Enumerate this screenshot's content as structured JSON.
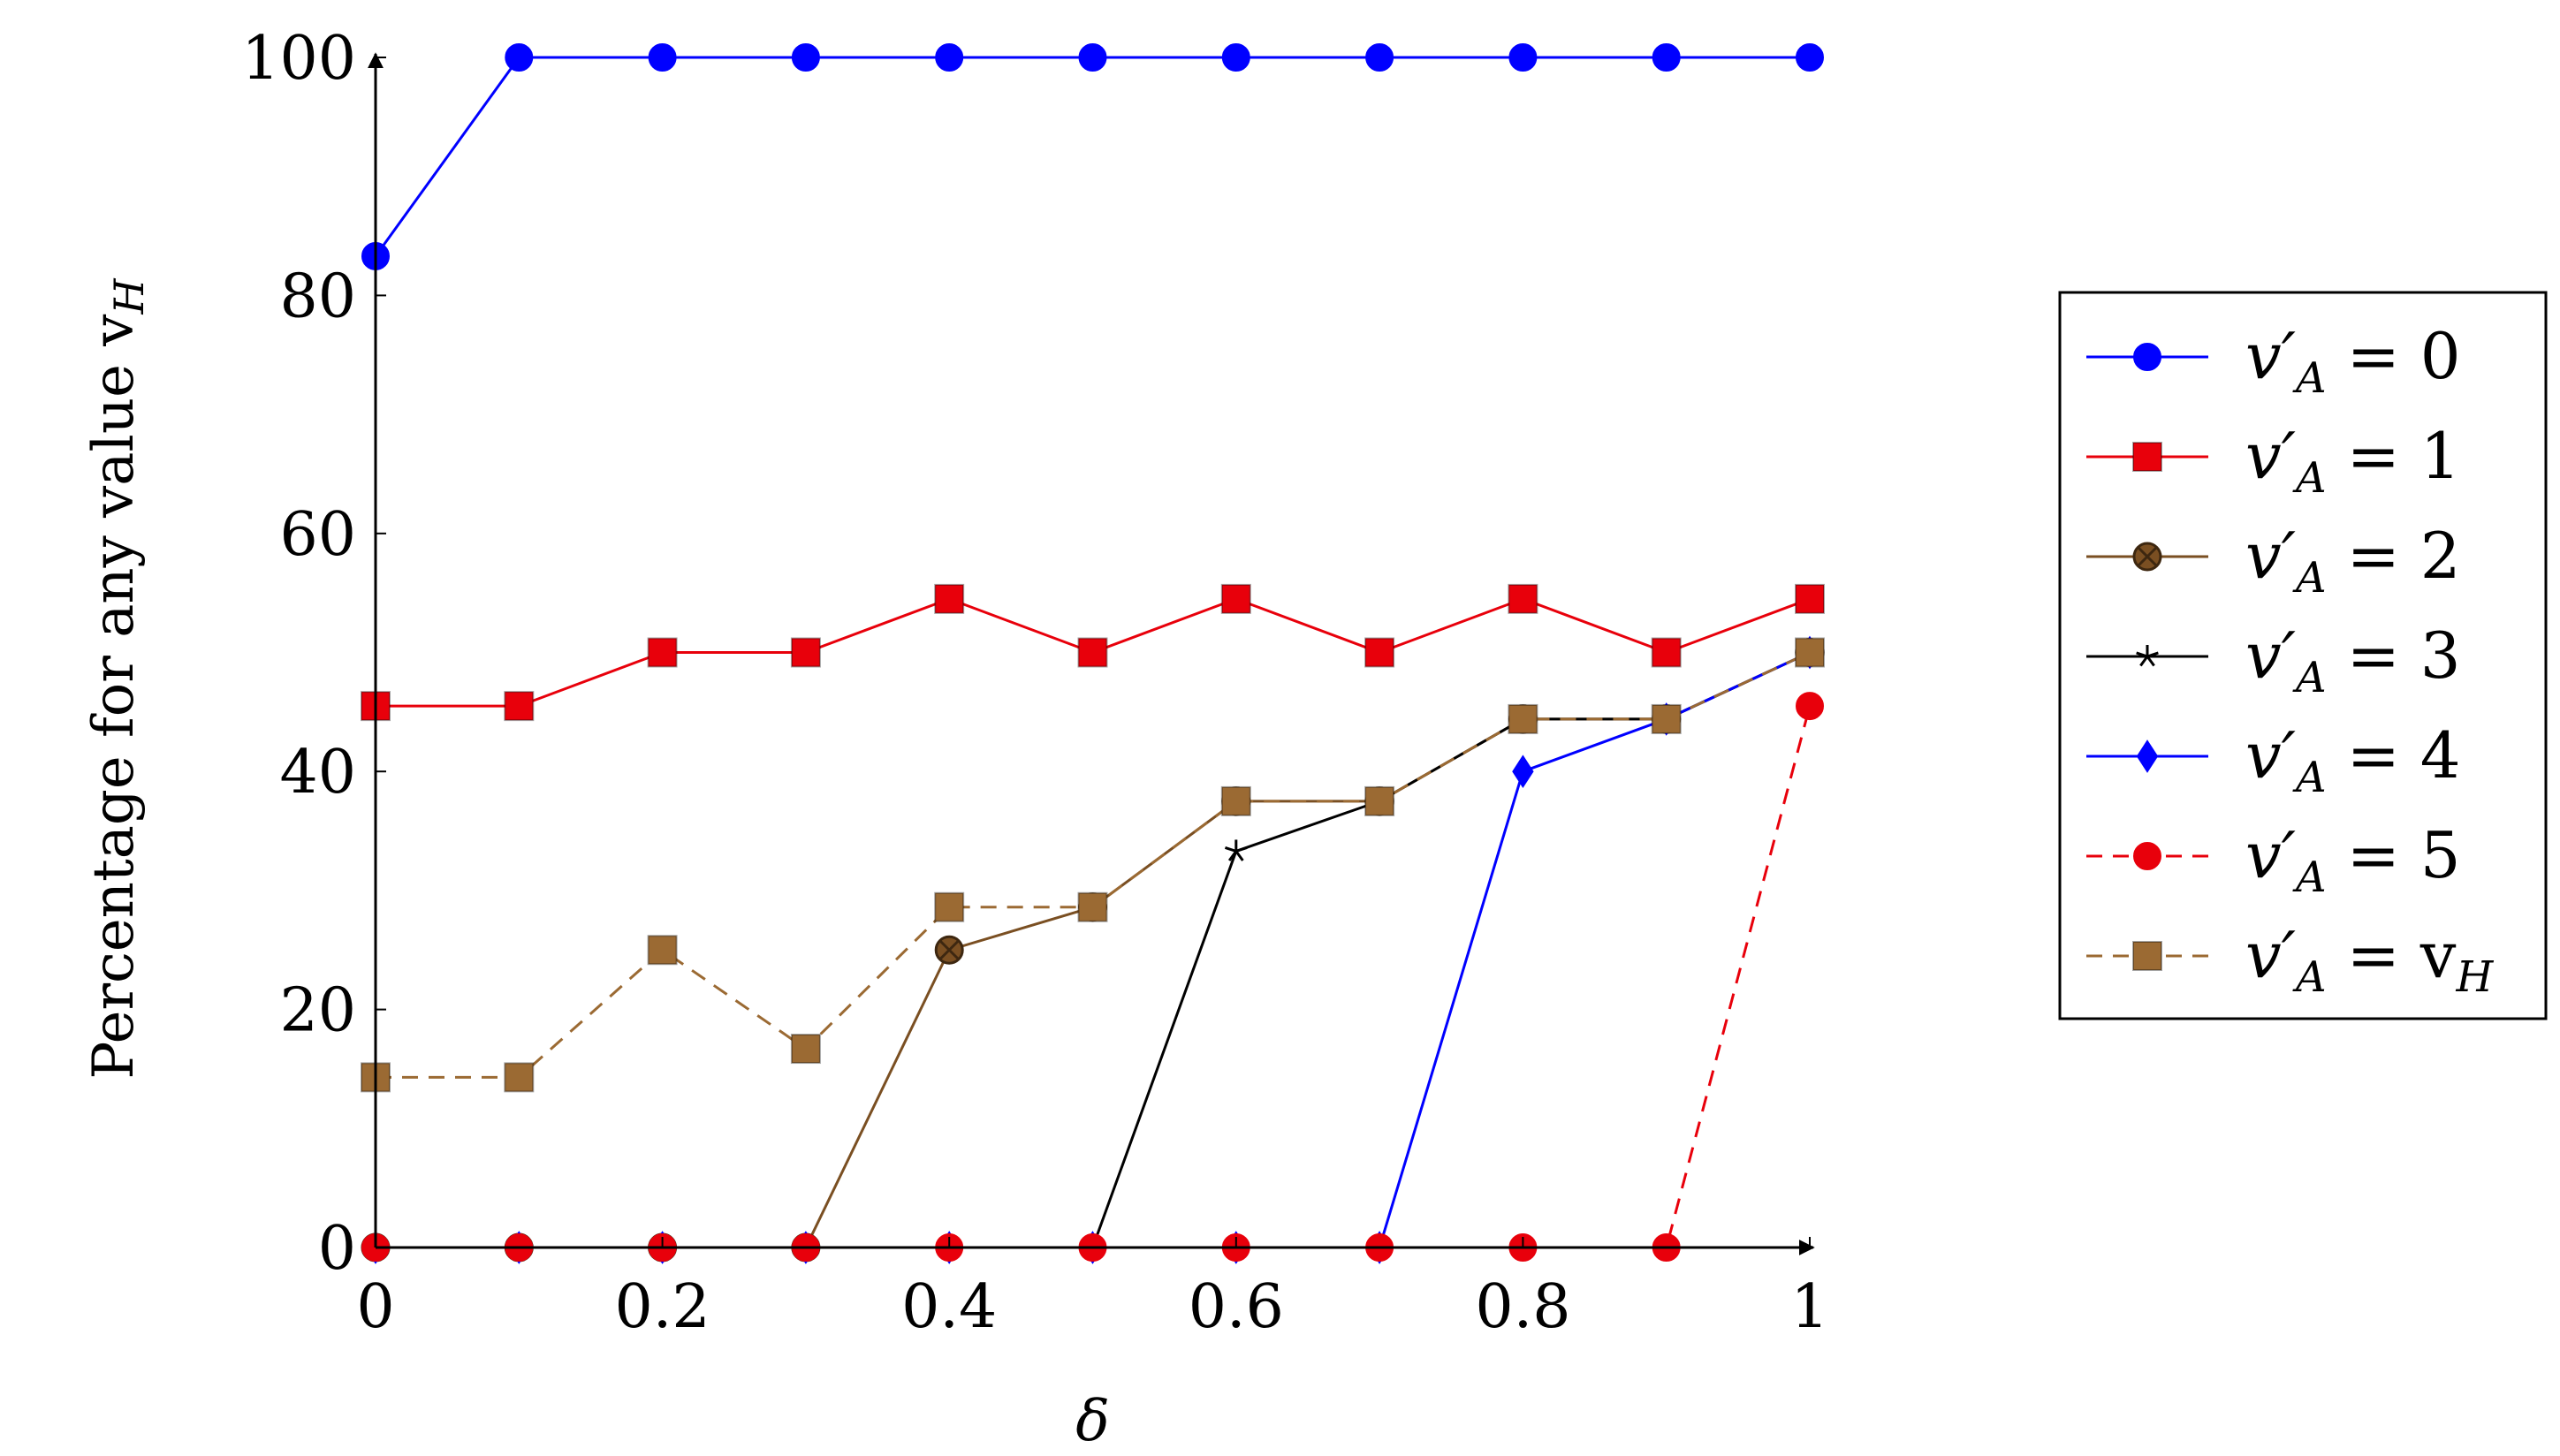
{
  "chart_data": {
    "type": "line",
    "xlabel": "δ",
    "ylabel": "Percentage for any value v",
    "ylabel_sub": "H",
    "xlim": [
      0,
      1
    ],
    "ylim": [
      0,
      100
    ],
    "x_ticks": [
      0,
      0.2,
      0.4,
      0.6,
      0.8,
      1
    ],
    "x_tick_labels": [
      "0",
      "0.2",
      "0.4",
      "0.6",
      "0.8",
      "1"
    ],
    "y_ticks": [
      0,
      20,
      40,
      60,
      80,
      100
    ],
    "y_tick_labels": [
      "0",
      "20",
      "40",
      "60",
      "80",
      "100"
    ],
    "x": [
      0,
      0.1,
      0.2,
      0.3,
      0.4,
      0.5,
      0.6,
      0.7,
      0.8,
      0.9,
      1.0
    ],
    "legend_position": "right",
    "series": [
      {
        "name": "v′A = 0",
        "label_var": "v′",
        "label_sub": "A",
        "label_rhs": "= 0",
        "color": "#0000ff",
        "marker": "circle",
        "dash": "solid",
        "values": [
          83.3,
          100,
          100,
          100,
          100,
          100,
          100,
          100,
          100,
          100,
          100
        ]
      },
      {
        "name": "v′A = 1",
        "label_var": "v′",
        "label_sub": "A",
        "label_rhs": "= 1",
        "color": "#e8000b",
        "marker": "square",
        "dash": "solid",
        "values": [
          45.5,
          45.5,
          50,
          50,
          54.5,
          50,
          54.5,
          50,
          54.5,
          50,
          54.5
        ]
      },
      {
        "name": "v′A = 2",
        "label_var": "v′",
        "label_sub": "A",
        "label_rhs": "= 2",
        "color": "#7a4f22",
        "marker": "otimes",
        "dash": "solid",
        "values": [
          0,
          0,
          0,
          0,
          25,
          28.6,
          37.5,
          37.5,
          44.4,
          44.4,
          50
        ]
      },
      {
        "name": "v′A = 3",
        "label_var": "v′",
        "label_sub": "A",
        "label_rhs": "= 3",
        "color": "#000000",
        "marker": "star",
        "dash": "solid",
        "values": [
          0,
          0,
          0,
          0,
          0,
          0,
          33.3,
          37.5,
          44.4,
          44.4,
          50
        ]
      },
      {
        "name": "v′A = 4",
        "label_var": "v′",
        "label_sub": "A",
        "label_rhs": "= 4",
        "color": "#0000ff",
        "marker": "diamond",
        "dash": "solid",
        "values": [
          0,
          0,
          0,
          0,
          0,
          0,
          0,
          0,
          40,
          44.4,
          50
        ]
      },
      {
        "name": "v′A = 5",
        "label_var": "v′",
        "label_sub": "A",
        "label_rhs": "= 5",
        "color": "#e8000b",
        "marker": "circle",
        "dash": "dashed",
        "values": [
          0,
          0,
          0,
          0,
          0,
          0,
          0,
          0,
          0,
          0,
          45.5
        ]
      },
      {
        "name": "v′A = vH",
        "label_var": "v′",
        "label_sub": "A",
        "label_rhs": "= v",
        "label_rhs_sub": "H",
        "color": "#9b6a33",
        "marker": "square",
        "dash": "dashed",
        "values": [
          14.3,
          14.3,
          25,
          16.7,
          28.6,
          28.6,
          37.5,
          37.5,
          44.4,
          44.4,
          50
        ]
      }
    ]
  }
}
